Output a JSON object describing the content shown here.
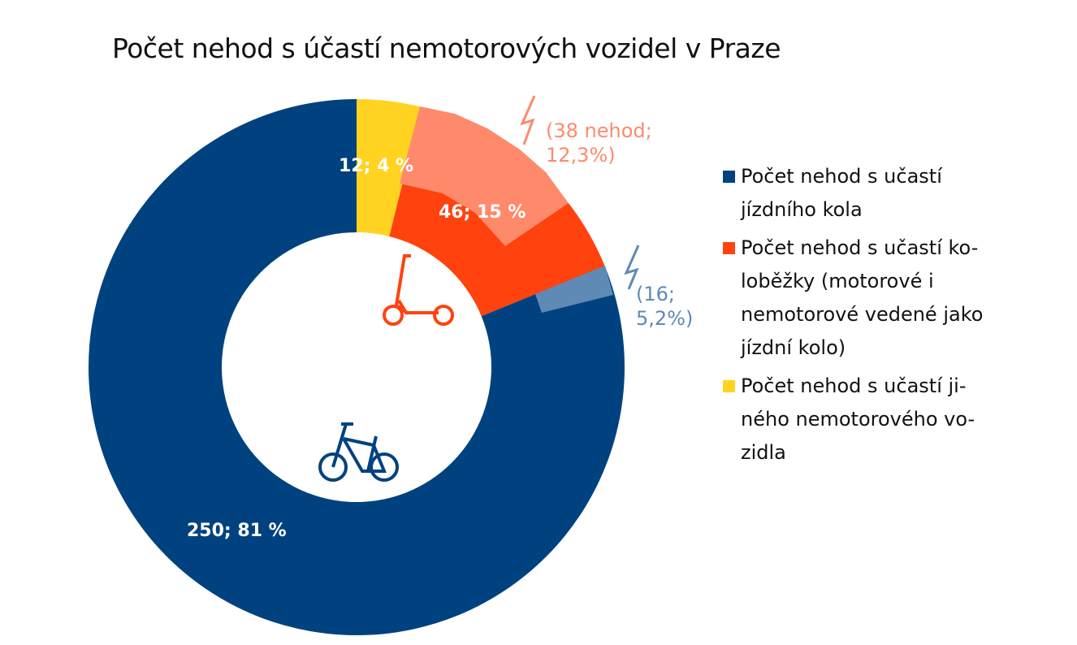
{
  "chart_data": {
    "type": "pie",
    "variant": "donut",
    "title": "Počet nehod s účastí nemotorových vozidel v Praze",
    "slices": [
      {
        "name": "Počet nehod s účastí jízdního kola",
        "value": 250,
        "percent": 81,
        "label": "250; 81 %",
        "color": "#00427f"
      },
      {
        "name": "Počet nehod s účastí koloběžky (motorové i nemotorové vedené jako jízdní kolo)",
        "value": 46,
        "percent": 15,
        "label": "46; 15 %",
        "color": "#ff420e"
      },
      {
        "name": "Počet nehod s účastí jiného nemotorového vozidla",
        "value": 12,
        "percent": 4,
        "label": "12; 4 %",
        "color": "#ffd320"
      }
    ],
    "order_clockwise_from_top": [
      2,
      1,
      0
    ],
    "sub_annotations": [
      {
        "parent": "koloběžka",
        "value": 38,
        "percent": 12.3,
        "label_line1": "(38 nehod;",
        "label_line2": "12,3%)",
        "color": "#ff8a6b",
        "icon": "lightning-icon"
      },
      {
        "parent": "jízdní kolo",
        "value": 16,
        "percent": 5.2,
        "label_line1": "(16;",
        "label_line2": "5,2%)",
        "color": "#5f8ab5",
        "icon": "lightning-icon"
      }
    ],
    "legend": {
      "placement": "right",
      "lines": [
        [
          "Počet nehod s učastí",
          "jízdního kola"
        ],
        [
          "Počet nehod s učastí ko-",
          "loběžky (motorové i",
          "nemotorové vedené jako",
          "jízdní kolo)"
        ],
        [
          "Počet nehod s učastí ji-",
          "ného nemotorového vo-",
          "zidla"
        ]
      ]
    }
  }
}
